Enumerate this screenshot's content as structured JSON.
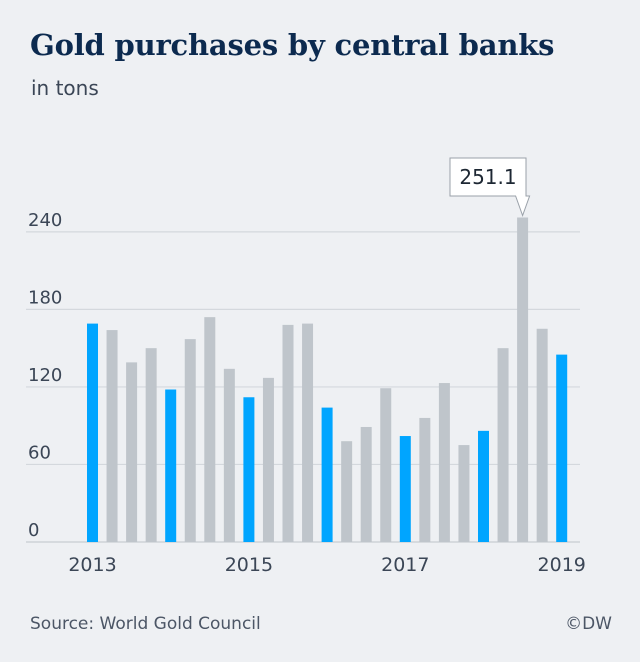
{
  "chart_data": {
    "type": "bar",
    "title": "Gold purchases by central banks",
    "subtitle": "in tons",
    "xlabel": "",
    "ylabel": "",
    "ylim": [
      0,
      260
    ],
    "yticks": [
      0,
      60,
      120,
      180,
      240
    ],
    "xtick_labels": [
      "2013",
      "2015",
      "2017",
      "2019"
    ],
    "quarters": [
      "Q1 2013",
      "Q2 2013",
      "Q3 2013",
      "Q4 2013",
      "Q1 2014",
      "Q2 2014",
      "Q3 2014",
      "Q4 2014",
      "Q1 2015",
      "Q2 2015",
      "Q3 2015",
      "Q4 2015",
      "Q1 2016",
      "Q2 2016",
      "Q3 2016",
      "Q4 2016",
      "Q1 2017",
      "Q2 2017",
      "Q3 2017",
      "Q4 2017",
      "Q1 2018",
      "Q2 2018",
      "Q3 2018",
      "Q4 2018",
      "Q1 2019"
    ],
    "values": [
      169,
      164,
      139,
      150,
      118,
      157,
      174,
      134,
      112,
      127,
      168,
      169,
      104,
      78,
      89,
      119,
      82,
      96,
      123,
      75,
      86,
      150,
      251.1,
      165,
      145
    ],
    "first_quarter_color": "#00a5ff",
    "other_quarter_color": "#bfc5cb",
    "grid": true,
    "annotation": {
      "label": "251.1",
      "index": 22
    }
  },
  "footer": {
    "source": "Source: World Gold Council",
    "credit": "©DW"
  },
  "colors": {
    "background": "#eef0f3",
    "title": "#0c2a4f",
    "text": "#3b4656",
    "gridline": "#d4d8dd"
  }
}
